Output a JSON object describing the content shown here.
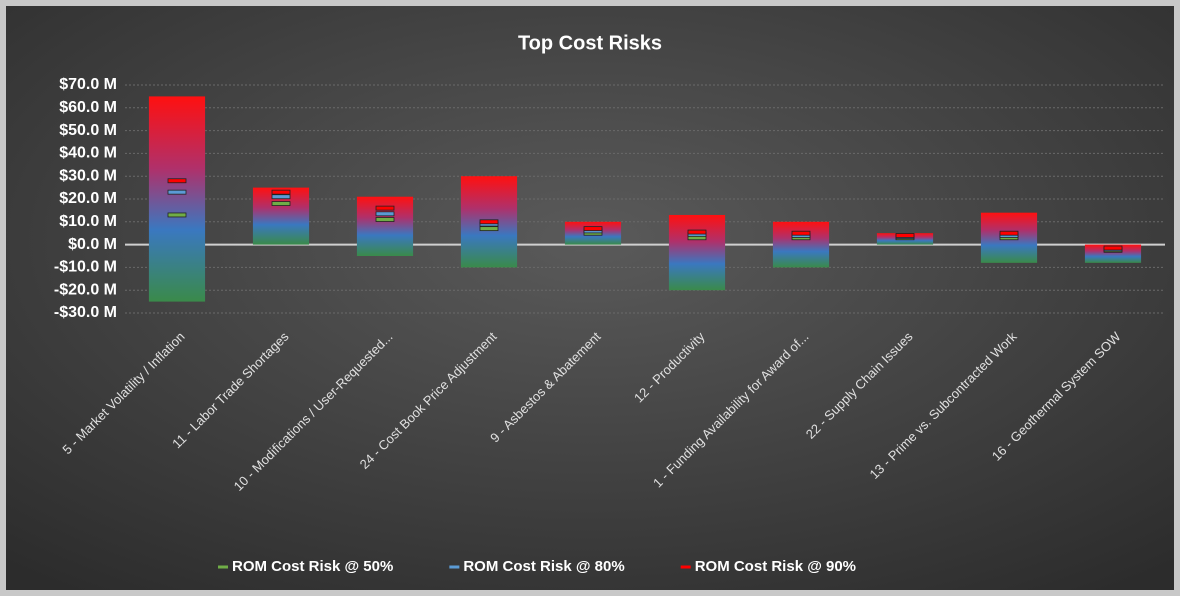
{
  "chart_data": {
    "type": "range_bar",
    "title": "Top Cost Risks",
    "categories": [
      "5 - Market Volatility / Inflation",
      "11 - Labor Trade Shortages",
      "10 - Modifications / User-Requested...",
      "24 - Cost Book Price Adjustment",
      "9 - Asbestos & Abatement",
      "12 - Productivity",
      "1 - Funding Availability for Award of...",
      "22 - Supply Chain Issues",
      "13 - Prime vs. Subcontracted Work",
      "16 - Geothermal System SOW"
    ],
    "range_low": [
      -25,
      0,
      -5,
      -10,
      0,
      -20,
      -10,
      0,
      -8,
      -8
    ],
    "range_high": [
      65,
      25,
      21,
      30,
      10,
      13,
      10,
      5,
      14,
      0
    ],
    "series": [
      {
        "name": "ROM Cost Risk @ 50%",
        "color": "#70ad47",
        "values": [
          13,
          18,
          11,
          7,
          5,
          3,
          3,
          3,
          3,
          -2.5
        ]
      },
      {
        "name": "ROM Cost Risk @ 80%",
        "color": "#5b9bd5",
        "values": [
          23,
          21,
          13.5,
          9,
          6,
          4.5,
          4,
          3.5,
          4,
          -2
        ]
      },
      {
        "name": "ROM Cost Risk @ 90%",
        "color": "#ff0000",
        "values": [
          28,
          23,
          16,
          10,
          7,
          5.5,
          5,
          4,
          5,
          -1.5
        ]
      }
    ],
    "ylim": [
      -30,
      70
    ],
    "yticks": [
      {
        "value": -30,
        "label": "-$30.0 M"
      },
      {
        "value": -20,
        "label": "-$20.0 M"
      },
      {
        "value": -10,
        "label": "-$10.0 M"
      },
      {
        "value": 0,
        "label": "$0.0 M"
      },
      {
        "value": 10,
        "label": "$10.0 M"
      },
      {
        "value": 20,
        "label": "$20.0 M"
      },
      {
        "value": 30,
        "label": "$30.0 M"
      },
      {
        "value": 40,
        "label": "$40.0 M"
      },
      {
        "value": 50,
        "label": "$50.0 M"
      },
      {
        "value": 60,
        "label": "$60.0 M"
      },
      {
        "value": 70,
        "label": "$70.0 M"
      }
    ],
    "grid": true,
    "legend": "bottom"
  }
}
